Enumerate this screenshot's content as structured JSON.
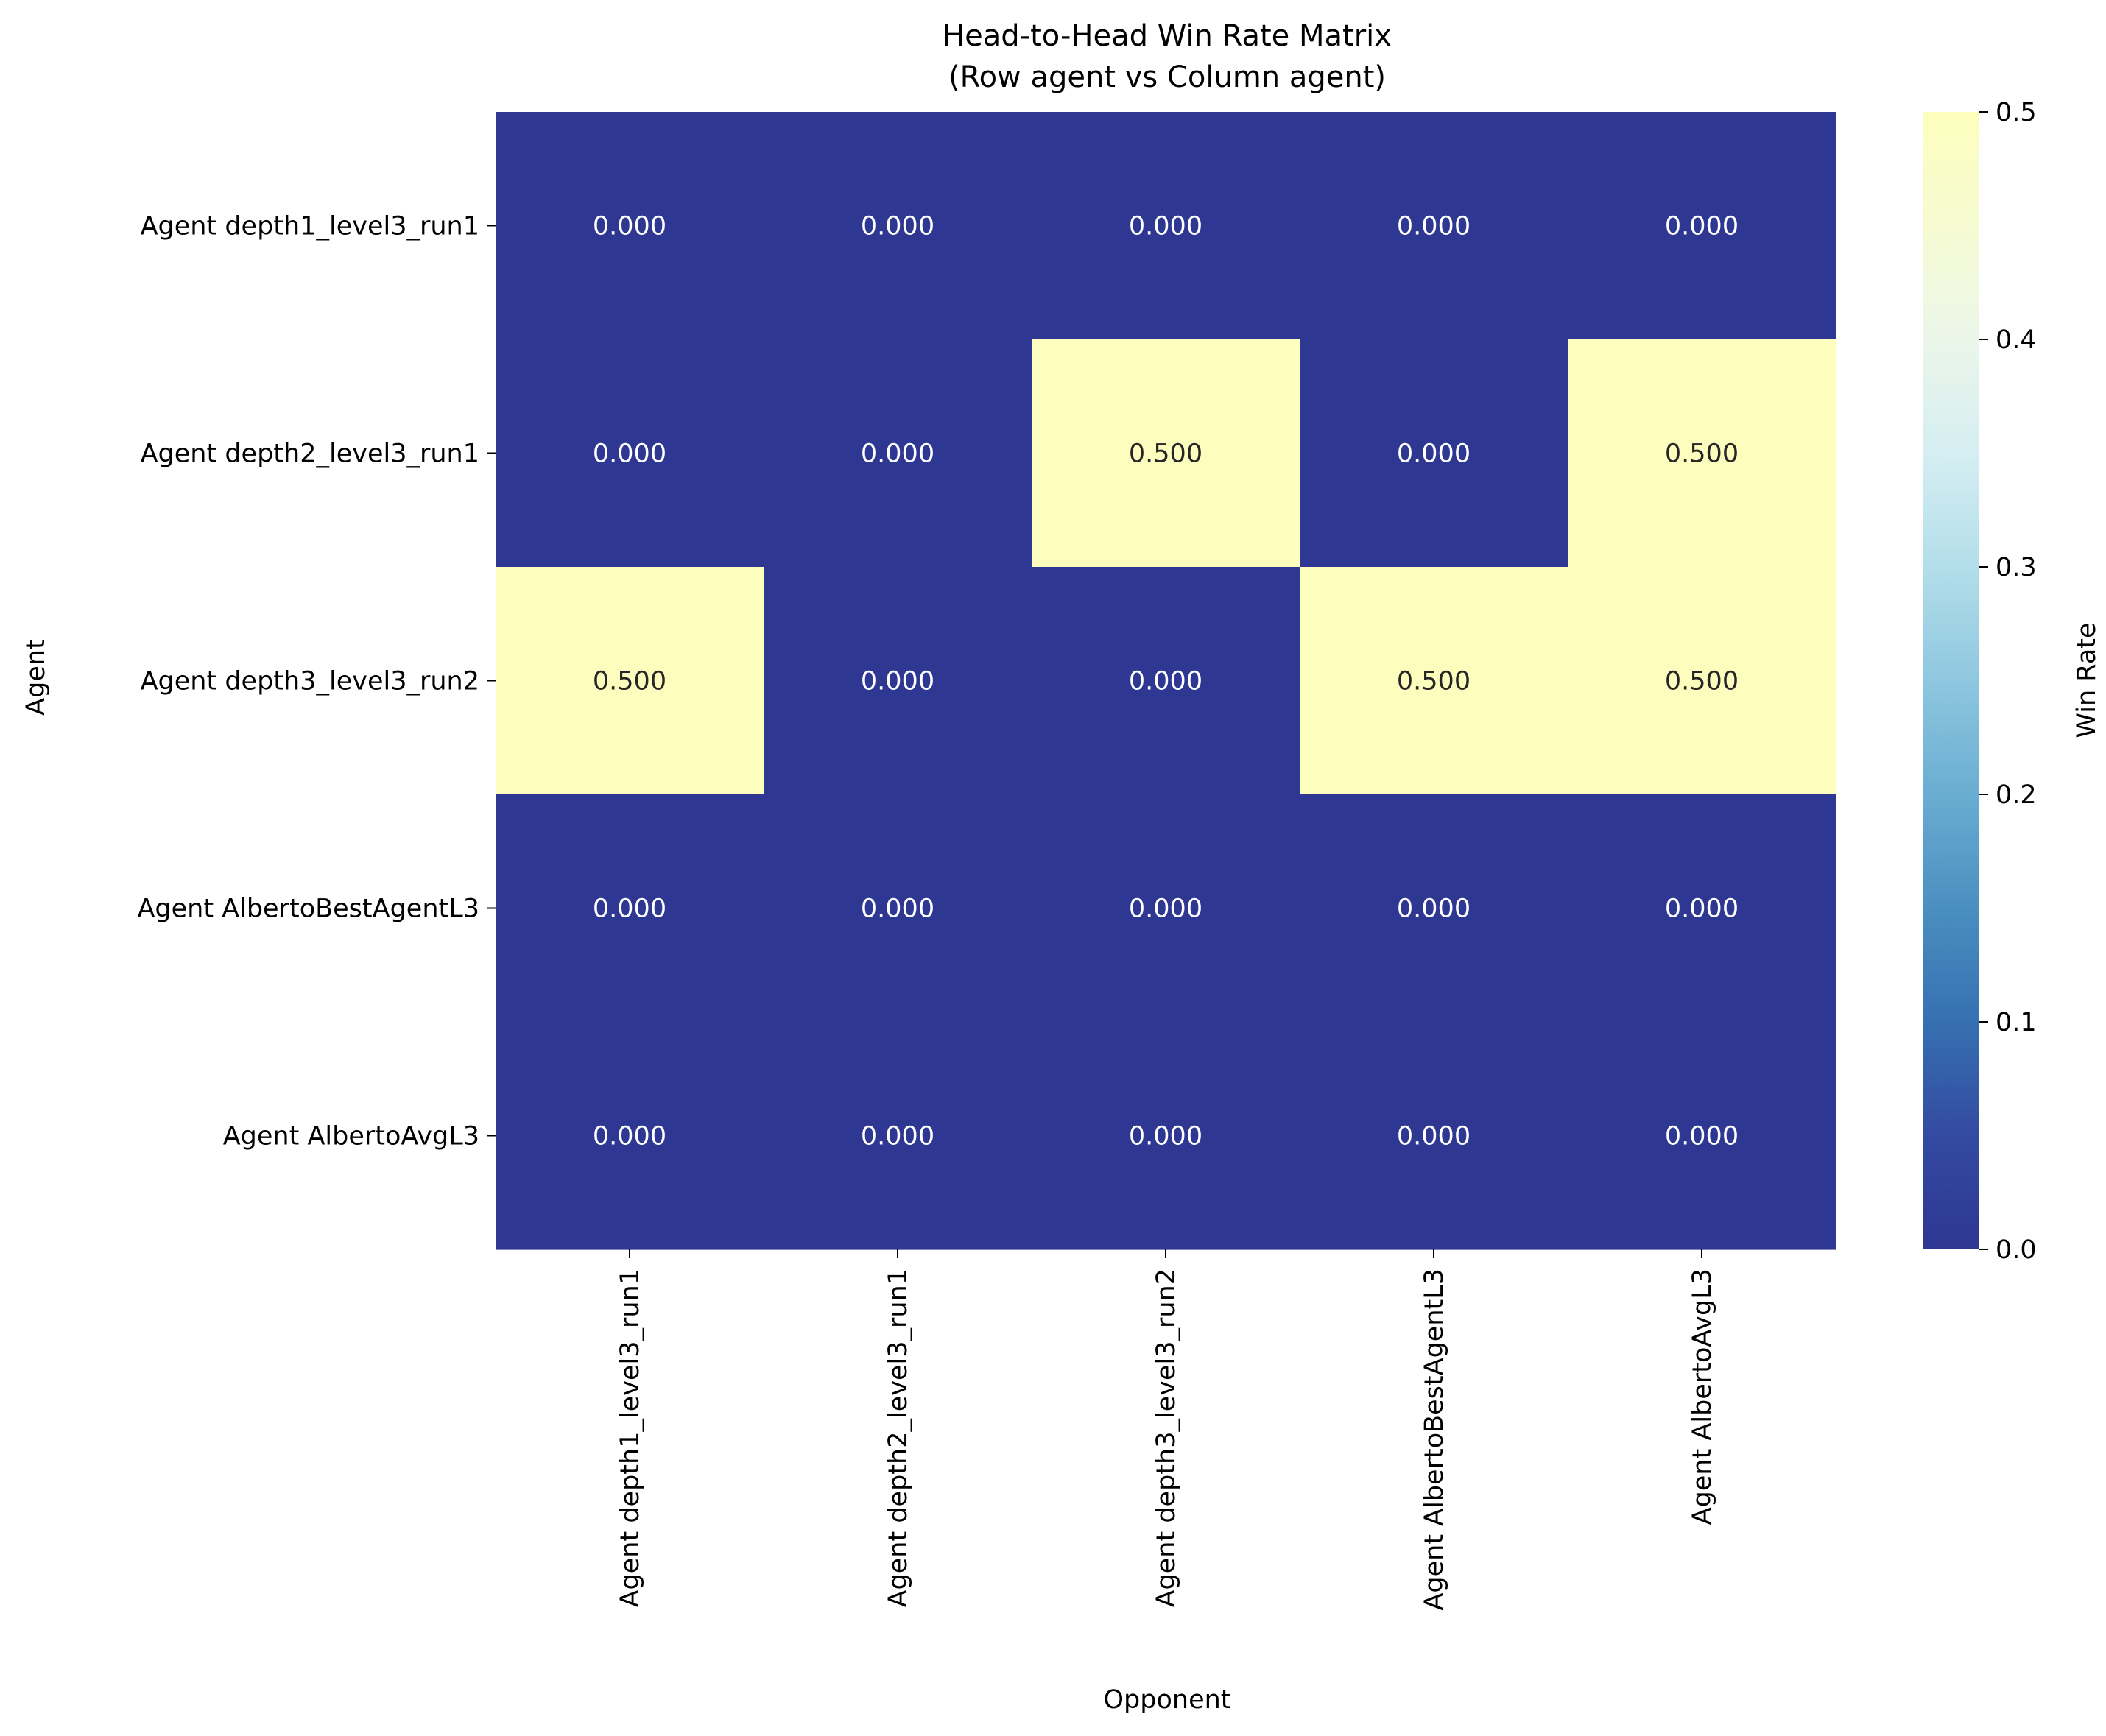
{
  "chart_data": {
    "type": "heatmap",
    "title": "Head-to-Head Win Rate Matrix",
    "subtitle": "(Row agent vs Column agent)",
    "xlabel": "Opponent",
    "ylabel": "Agent",
    "rows": [
      "Agent depth1_level3_run1",
      "Agent depth2_level3_run1",
      "Agent depth3_level3_run2",
      "Agent AlbertoBestAgentL3",
      "Agent AlbertoAvgL3"
    ],
    "columns": [
      "Agent depth1_level3_run1",
      "Agent depth2_level3_run1",
      "Agent depth3_level3_run2",
      "Agent AlbertoBestAgentL3",
      "Agent AlbertoAvgL3"
    ],
    "values": [
      [
        0.0,
        0.0,
        0.0,
        0.0,
        0.0
      ],
      [
        0.0,
        0.0,
        0.5,
        0.0,
        0.5
      ],
      [
        0.5,
        0.0,
        0.0,
        0.5,
        0.5
      ],
      [
        0.0,
        0.0,
        0.0,
        0.0,
        0.0
      ],
      [
        0.0,
        0.0,
        0.0,
        0.0,
        0.0
      ]
    ],
    "cell_labels": [
      [
        "0.000",
        "0.000",
        "0.000",
        "0.000",
        "0.000"
      ],
      [
        "0.000",
        "0.000",
        "0.500",
        "0.000",
        "0.500"
      ],
      [
        "0.500",
        "0.000",
        "0.000",
        "0.500",
        "0.500"
      ],
      [
        "0.000",
        "0.000",
        "0.000",
        "0.000",
        "0.000"
      ],
      [
        "0.000",
        "0.000",
        "0.000",
        "0.000",
        "0.000"
      ]
    ],
    "colormap": "YlGnBu_r",
    "colorbar": {
      "label": "Win Rate",
      "range": [
        0.0,
        0.5
      ],
      "ticks": [
        "0.0",
        "0.1",
        "0.2",
        "0.3",
        "0.4",
        "0.5"
      ],
      "low_color": "#2e3792",
      "high_color": "#fdfebd"
    },
    "legend": "colorbar-right",
    "grid": false
  }
}
